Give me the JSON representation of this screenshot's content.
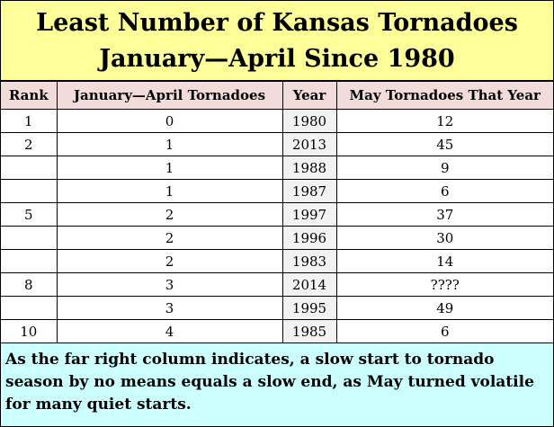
{
  "title": {
    "line1": "Least Number of Kansas Tornadoes",
    "line2": "January—April Since 1980"
  },
  "table": {
    "headers": [
      "Rank",
      "January—April Tornadoes",
      "Year",
      "May Tornadoes That Year"
    ],
    "rows": [
      [
        "1",
        "0",
        "1980",
        "12"
      ],
      [
        "2",
        "1",
        "2013",
        "45"
      ],
      [
        "",
        "1",
        "1988",
        "9"
      ],
      [
        "",
        "1",
        "1987",
        "6"
      ],
      [
        "5",
        "2",
        "1997",
        "37"
      ],
      [
        "",
        "2",
        "1996",
        "30"
      ],
      [
        "",
        "2",
        "1983",
        "14"
      ],
      [
        "8",
        "3",
        "2014",
        "????"
      ],
      [
        "",
        "3",
        "1995",
        "49"
      ],
      [
        "10",
        "4",
        "1985",
        "6"
      ]
    ]
  },
  "note": "As the far right column indicates, a slow start to tornado season by no means equals a slow end, as May turned volatile for many quiet starts.",
  "colors": {
    "title_bg": "#ffff99",
    "header_bg": "#f2dcdb",
    "year_col_bg": "#f2f2f2",
    "note_bg": "#ccffff"
  }
}
